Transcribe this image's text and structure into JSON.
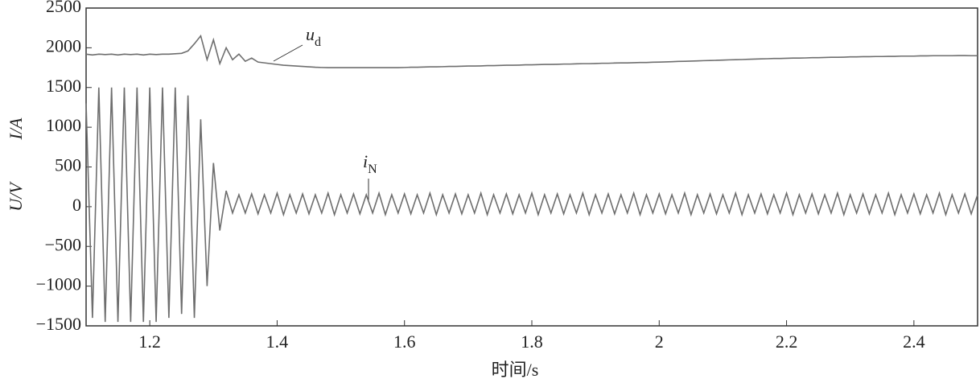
{
  "chart_data": {
    "type": "line",
    "xlabel": "时间/s",
    "ylabel_u": "U/V",
    "ylabel_i": "I/A",
    "annotations": [
      {
        "text": "u",
        "subscript": "d"
      },
      {
        "text": "i",
        "subscript": "N"
      }
    ],
    "x": [
      1.1,
      1.11,
      1.12,
      1.13,
      1.14,
      1.15,
      1.16,
      1.17,
      1.18,
      1.19,
      1.2,
      1.21,
      1.22,
      1.23,
      1.24,
      1.25,
      1.26,
      1.27,
      1.28,
      1.29,
      1.3,
      1.31,
      1.32,
      1.33,
      1.34,
      1.35,
      1.36,
      1.37,
      1.38,
      1.39,
      1.4,
      1.41,
      1.42,
      1.43,
      1.44,
      1.45,
      1.46,
      1.47,
      1.48,
      1.49,
      1.5,
      1.51,
      1.52,
      1.53,
      1.54,
      1.55,
      1.56,
      1.57,
      1.58,
      1.59,
      1.6,
      1.61,
      1.62,
      1.63,
      1.64,
      1.65,
      1.66,
      1.67,
      1.68,
      1.69,
      1.7,
      1.71,
      1.72,
      1.73,
      1.74,
      1.75,
      1.76,
      1.77,
      1.78,
      1.79,
      1.8,
      1.81,
      1.82,
      1.83,
      1.84,
      1.85,
      1.86,
      1.87,
      1.88,
      1.89,
      1.9,
      1.91,
      1.92,
      1.93,
      1.94,
      1.95,
      1.96,
      1.97,
      1.98,
      1.99,
      2,
      2.01,
      2.02,
      2.03,
      2.04,
      2.05,
      2.06,
      2.07,
      2.08,
      2.09,
      2.1,
      2.11,
      2.12,
      2.13,
      2.14,
      2.15,
      2.16,
      2.17,
      2.18,
      2.19,
      2.2,
      2.21,
      2.22,
      2.23,
      2.24,
      2.25,
      2.26,
      2.27,
      2.28,
      2.29,
      2.3,
      2.31,
      2.32,
      2.33,
      2.34,
      2.35,
      2.36,
      2.37,
      2.38,
      2.39,
      2.4,
      2.41,
      2.42,
      2.43,
      2.44,
      2.45,
      2.46,
      2.47,
      2.48,
      2.49,
      2.5
    ],
    "series": [
      {
        "name": "ud",
        "color": "#6e6e6e",
        "values": [
          1920,
          1910,
          1920,
          1915,
          1920,
          1910,
          1920,
          1915,
          1920,
          1910,
          1920,
          1915,
          1920,
          1920,
          1925,
          1930,
          1960,
          2050,
          2150,
          1850,
          2100,
          1800,
          2000,
          1850,
          1920,
          1830,
          1870,
          1820,
          1810,
          1800,
          1790,
          1780,
          1775,
          1770,
          1765,
          1760,
          1755,
          1752,
          1750,
          1750,
          1750,
          1750,
          1750,
          1750,
          1750,
          1750,
          1750,
          1750,
          1750,
          1750,
          1752,
          1755,
          1755,
          1758,
          1760,
          1760,
          1762,
          1765,
          1765,
          1768,
          1770,
          1770,
          1772,
          1775,
          1775,
          1778,
          1780,
          1780,
          1782,
          1785,
          1785,
          1788,
          1790,
          1790,
          1792,
          1795,
          1795,
          1798,
          1800,
          1800,
          1802,
          1805,
          1805,
          1808,
          1810,
          1810,
          1812,
          1815,
          1815,
          1818,
          1820,
          1822,
          1825,
          1828,
          1830,
          1832,
          1835,
          1838,
          1840,
          1842,
          1845,
          1848,
          1850,
          1852,
          1855,
          1858,
          1860,
          1862,
          1865,
          1865,
          1868,
          1870,
          1870,
          1872,
          1875,
          1875,
          1878,
          1880,
          1880,
          1882,
          1885,
          1885,
          1888,
          1888,
          1890,
          1890,
          1892,
          1892,
          1895,
          1895,
          1895,
          1898,
          1898,
          1900,
          1900,
          1900,
          1900,
          1902,
          1902,
          1900,
          1900
        ]
      },
      {
        "name": "iN",
        "color": "#6e6e6e",
        "values": [
          1300,
          -1400,
          1500,
          -1450,
          1500,
          -1450,
          1500,
          -1450,
          1500,
          -1450,
          1500,
          -1450,
          1500,
          -1400,
          1500,
          -1350,
          1400,
          -1400,
          1100,
          -1000,
          550,
          -300,
          200,
          -80,
          150,
          -80,
          160,
          -90,
          150,
          -80,
          170,
          -100,
          150,
          -80,
          160,
          -90,
          150,
          -80,
          170,
          -100,
          150,
          -80,
          160,
          -90,
          150,
          -80,
          170,
          -100,
          150,
          -80,
          160,
          -90,
          150,
          -80,
          170,
          -100,
          150,
          -80,
          160,
          -90,
          150,
          -80,
          170,
          -100,
          150,
          -80,
          160,
          -90,
          150,
          -80,
          170,
          -100,
          150,
          -80,
          160,
          -90,
          150,
          -80,
          170,
          -100,
          150,
          -80,
          160,
          -90,
          150,
          -80,
          170,
          -100,
          150,
          -80,
          160,
          -90,
          150,
          -80,
          170,
          -100,
          150,
          -80,
          160,
          -90,
          150,
          -80,
          170,
          -100,
          150,
          -80,
          160,
          -90,
          150,
          -80,
          170,
          -100,
          150,
          -80,
          160,
          -90,
          150,
          -80,
          170,
          -100,
          150,
          -80,
          160,
          -90,
          150,
          -80,
          170,
          -100,
          150,
          -80,
          160,
          -90,
          150,
          -80,
          170,
          -100,
          150,
          -80,
          160,
          -90,
          150
        ]
      }
    ],
    "xlim": [
      1.1,
      2.5
    ],
    "xticks": [
      1.2,
      1.4,
      1.6,
      1.8,
      2,
      2.2,
      2.4
    ],
    "ylim": [
      -1500,
      2500
    ],
    "yticks": [
      {
        "value": -1500,
        "label": "−1500"
      },
      {
        "value": -1000,
        "label": "−1000"
      },
      {
        "value": -500,
        "label": "−500"
      },
      0,
      500,
      1000,
      1500,
      2000,
      2500
    ],
    "grid": false
  }
}
